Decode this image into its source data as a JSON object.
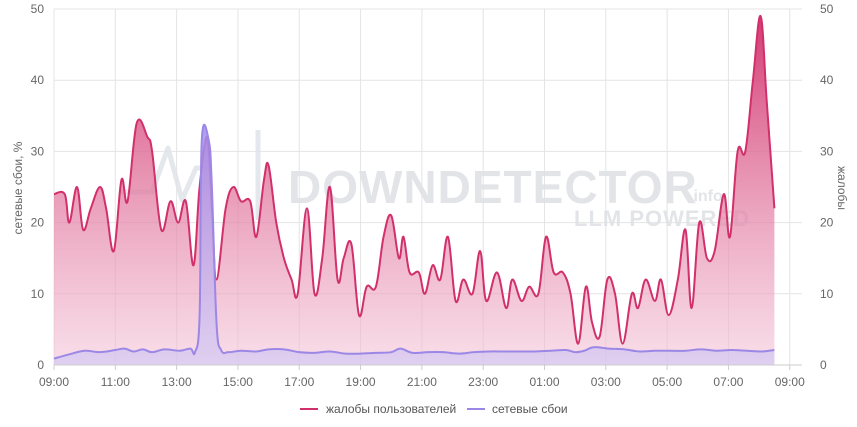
{
  "chart_data": {
    "type": "area",
    "x_ticks": [
      "09:00",
      "11:00",
      "13:00",
      "15:00",
      "17:00",
      "19:00",
      "21:00",
      "23:00",
      "01:00",
      "03:00",
      "05:00",
      "07:00",
      "09:00"
    ],
    "y_left": {
      "label": "сетевые сбои, %",
      "ticks": [
        0,
        10,
        20,
        30,
        40,
        50
      ],
      "range": [
        0,
        50
      ]
    },
    "y_right": {
      "label": "жалобы",
      "ticks": [
        0,
        10,
        20,
        30,
        40,
        50
      ],
      "range": [
        0,
        50
      ]
    },
    "x_range_hours": [
      0,
      24.4
    ],
    "grid": true,
    "legend_position": "bottom",
    "series": [
      {
        "name": "жалобы пользователей",
        "color": "#d1306a",
        "axis": "right",
        "points": [
          [
            0.0,
            24
          ],
          [
            0.35,
            24
          ],
          [
            0.5,
            20
          ],
          [
            0.75,
            25
          ],
          [
            0.95,
            19
          ],
          [
            1.2,
            22
          ],
          [
            1.5,
            25
          ],
          [
            1.7,
            22
          ],
          [
            1.95,
            16
          ],
          [
            2.2,
            26
          ],
          [
            2.4,
            23
          ],
          [
            2.7,
            34
          ],
          [
            3.05,
            32
          ],
          [
            3.2,
            30
          ],
          [
            3.5,
            19
          ],
          [
            3.8,
            23
          ],
          [
            4.05,
            20
          ],
          [
            4.3,
            23
          ],
          [
            4.55,
            14
          ],
          [
            4.75,
            25
          ],
          [
            5.0,
            32
          ],
          [
            5.15,
            22
          ],
          [
            5.3,
            12
          ],
          [
            5.6,
            22
          ],
          [
            5.85,
            25
          ],
          [
            6.1,
            23
          ],
          [
            6.4,
            23
          ],
          [
            6.6,
            18
          ],
          [
            6.85,
            26
          ],
          [
            7.0,
            28
          ],
          [
            7.25,
            20
          ],
          [
            7.5,
            15
          ],
          [
            7.75,
            12
          ],
          [
            7.95,
            10
          ],
          [
            8.25,
            22
          ],
          [
            8.5,
            10
          ],
          [
            8.75,
            15
          ],
          [
            9.0,
            25
          ],
          [
            9.25,
            12
          ],
          [
            9.45,
            15
          ],
          [
            9.7,
            17
          ],
          [
            9.95,
            7
          ],
          [
            10.2,
            11
          ],
          [
            10.5,
            11
          ],
          [
            10.75,
            18
          ],
          [
            11.0,
            21
          ],
          [
            11.25,
            15
          ],
          [
            11.4,
            18
          ],
          [
            11.6,
            13
          ],
          [
            11.9,
            13
          ],
          [
            12.1,
            10
          ],
          [
            12.35,
            14
          ],
          [
            12.6,
            12
          ],
          [
            12.85,
            18
          ],
          [
            13.1,
            9
          ],
          [
            13.35,
            12
          ],
          [
            13.65,
            10
          ],
          [
            13.9,
            16
          ],
          [
            14.1,
            9
          ],
          [
            14.45,
            13
          ],
          [
            14.75,
            8
          ],
          [
            14.95,
            12
          ],
          [
            15.25,
            9
          ],
          [
            15.5,
            11
          ],
          [
            15.8,
            10
          ],
          [
            16.05,
            18
          ],
          [
            16.3,
            13
          ],
          [
            16.6,
            13
          ],
          [
            16.85,
            10
          ],
          [
            17.1,
            3
          ],
          [
            17.35,
            11
          ],
          [
            17.55,
            6
          ],
          [
            17.8,
            4
          ],
          [
            18.05,
            12
          ],
          [
            18.3,
            10
          ],
          [
            18.55,
            3
          ],
          [
            18.85,
            10
          ],
          [
            19.05,
            8
          ],
          [
            19.3,
            12
          ],
          [
            19.6,
            9
          ],
          [
            19.8,
            12
          ],
          [
            20.05,
            7
          ],
          [
            20.35,
            12
          ],
          [
            20.6,
            19
          ],
          [
            20.8,
            8
          ],
          [
            21.05,
            20
          ],
          [
            21.3,
            15
          ],
          [
            21.55,
            16
          ],
          [
            21.85,
            24
          ],
          [
            22.05,
            18
          ],
          [
            22.3,
            30
          ],
          [
            22.55,
            30
          ],
          [
            22.8,
            40
          ],
          [
            23.05,
            49
          ],
          [
            23.25,
            37
          ],
          [
            23.5,
            22
          ]
        ]
      },
      {
        "name": "сетевые сбои",
        "color": "#9b88e6",
        "axis": "left",
        "points": [
          [
            0.0,
            0.9
          ],
          [
            0.5,
            1.5
          ],
          [
            1.0,
            2.0
          ],
          [
            1.5,
            1.8
          ],
          [
            2.0,
            2.1
          ],
          [
            2.3,
            2.3
          ],
          [
            2.6,
            1.9
          ],
          [
            2.9,
            2.2
          ],
          [
            3.2,
            1.8
          ],
          [
            3.6,
            2.2
          ],
          [
            4.1,
            2.0
          ],
          [
            4.45,
            2.3
          ],
          [
            4.6,
            1.8
          ],
          [
            4.75,
            7
          ],
          [
            4.82,
            31.5
          ],
          [
            5.05,
            31.5
          ],
          [
            5.15,
            25
          ],
          [
            5.3,
            6
          ],
          [
            5.45,
            2.1
          ],
          [
            5.7,
            1.8
          ],
          [
            6.1,
            2.0
          ],
          [
            6.6,
            1.9
          ],
          [
            7.0,
            2.2
          ],
          [
            7.5,
            2.2
          ],
          [
            8.0,
            1.8
          ],
          [
            8.5,
            1.7
          ],
          [
            9.0,
            1.9
          ],
          [
            9.5,
            1.6
          ],
          [
            10.0,
            1.6
          ],
          [
            10.5,
            1.7
          ],
          [
            11.0,
            1.8
          ],
          [
            11.3,
            2.3
          ],
          [
            11.7,
            1.7
          ],
          [
            12.2,
            1.8
          ],
          [
            12.7,
            1.8
          ],
          [
            13.2,
            1.6
          ],
          [
            13.7,
            1.8
          ],
          [
            14.2,
            1.9
          ],
          [
            14.7,
            1.9
          ],
          [
            15.2,
            1.9
          ],
          [
            15.7,
            1.9
          ],
          [
            16.2,
            2.0
          ],
          [
            16.7,
            2.1
          ],
          [
            17.0,
            1.8
          ],
          [
            17.3,
            2.0
          ],
          [
            17.6,
            2.5
          ],
          [
            18.1,
            2.3
          ],
          [
            18.6,
            2.2
          ],
          [
            19.1,
            1.9
          ],
          [
            19.6,
            2.0
          ],
          [
            20.1,
            2.0
          ],
          [
            20.6,
            2.0
          ],
          [
            21.1,
            2.2
          ],
          [
            21.6,
            2.0
          ],
          [
            22.1,
            2.1
          ],
          [
            22.6,
            2.0
          ],
          [
            23.1,
            1.9
          ],
          [
            23.5,
            2.1
          ]
        ]
      }
    ]
  },
  "watermark": {
    "brand": "DOWNDETECTOR",
    "suffix": ".info",
    "sub": "LLM POWERED"
  }
}
